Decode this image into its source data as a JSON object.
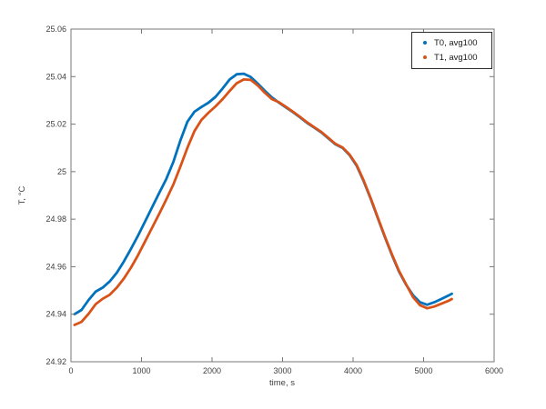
{
  "figure": {
    "background": "#ffffff"
  },
  "axes": {
    "box_color": "#777777",
    "tick_label_color": "#404040",
    "xtick_labels": [
      "0",
      "1000",
      "2000",
      "3000",
      "4000",
      "5000",
      "6000"
    ],
    "ytick_labels": [
      "24.92",
      "24.94",
      "24.96",
      "24.98",
      "25",
      "25.02",
      "25.04",
      "25.06"
    ]
  },
  "legend": {
    "entries": [
      {
        "label": "T0, avg100",
        "color": "#0072BD",
        "marker": "dot-icon"
      },
      {
        "label": "T1, avg100",
        "color": "#D95319",
        "marker": "dot-icon"
      }
    ]
  },
  "chart_data": {
    "type": "line",
    "title": "",
    "xlabel": "time, s",
    "ylabel": "T, °C",
    "xlim": [
      0,
      6000
    ],
    "ylim": [
      24.92,
      25.06
    ],
    "xticks": [
      0,
      1000,
      2000,
      3000,
      4000,
      5000,
      6000
    ],
    "yticks": [
      24.92,
      24.94,
      24.96,
      24.98,
      25,
      25.02,
      25.04,
      25.06
    ],
    "grid": false,
    "legend_position": "top-right-inside",
    "x": [
      50,
      150,
      250,
      350,
      450,
      550,
      650,
      750,
      850,
      950,
      1050,
      1150,
      1250,
      1350,
      1450,
      1550,
      1650,
      1750,
      1850,
      1950,
      2050,
      2150,
      2250,
      2350,
      2450,
      2550,
      2650,
      2750,
      2850,
      2950,
      3050,
      3150,
      3250,
      3350,
      3450,
      3550,
      3650,
      3750,
      3850,
      3950,
      4050,
      4150,
      4250,
      4350,
      4450,
      4550,
      4650,
      4750,
      4850,
      4950,
      5050,
      5150,
      5250,
      5350,
      5400
    ],
    "series": [
      {
        "name": "T0, avg100",
        "color": "#0072BD",
        "marker": "point",
        "values": [
          24.94,
          24.9418,
          24.946,
          24.9495,
          24.9512,
          24.9538,
          24.9575,
          24.9622,
          24.9675,
          24.973,
          24.979,
          24.985,
          24.991,
          24.9968,
          25.004,
          25.013,
          25.021,
          25.0252,
          25.0272,
          25.029,
          25.0315,
          25.035,
          25.0388,
          25.041,
          25.0412,
          25.0398,
          25.037,
          25.034,
          25.0312,
          25.029,
          25.027,
          25.025,
          25.0228,
          25.0205,
          25.0185,
          25.0165,
          25.014,
          25.0115,
          25.01,
          25.007,
          25.0025,
          24.996,
          24.9885,
          24.9805,
          24.9725,
          24.965,
          24.958,
          24.9525,
          24.948,
          24.945,
          24.944,
          24.945,
          24.9464,
          24.9478,
          24.9486
        ]
      },
      {
        "name": "T1, avg100",
        "color": "#D95319",
        "marker": "point",
        "values": [
          24.9355,
          24.9368,
          24.9402,
          24.9442,
          24.9465,
          24.9482,
          24.9512,
          24.955,
          24.9596,
          24.9648,
          24.9706,
          24.9764,
          24.9822,
          24.9882,
          24.9945,
          25.002,
          25.01,
          25.017,
          25.0218,
          25.0248,
          25.0275,
          25.0305,
          25.034,
          25.0372,
          25.0388,
          25.0386,
          25.0362,
          25.0332,
          25.0305,
          25.0292,
          25.0272,
          25.0252,
          25.023,
          25.0207,
          25.0187,
          25.0167,
          25.0142,
          25.0117,
          25.0102,
          25.0072,
          25.0028,
          24.9963,
          24.9888,
          24.9808,
          24.9728,
          24.9653,
          24.9583,
          24.9527,
          24.9472,
          24.9438,
          24.9425,
          24.9432,
          24.9444,
          24.9456,
          24.9464
        ]
      }
    ]
  }
}
